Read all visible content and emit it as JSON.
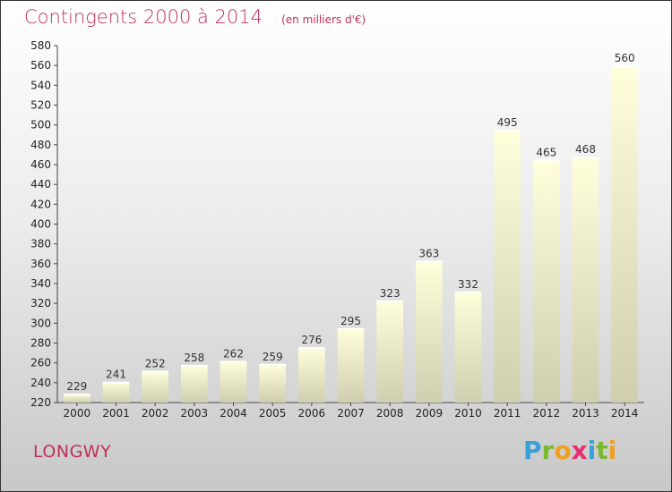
{
  "header": {
    "title": "Contingents 2000 à 2014",
    "subtitle": "(en milliers d'€)"
  },
  "footer": {
    "place": "LONGWY",
    "logo": "Proxiti"
  },
  "colors": {
    "title": "#c0305a",
    "bar_top": "#ffffdc",
    "bar_bottom": "#cfcfb0",
    "axis": "#444444"
  },
  "logo_letters": [
    {
      "char": "P",
      "color": "#3aa0d8"
    },
    {
      "char": "r",
      "color": "#7ab830"
    },
    {
      "char": "o",
      "color": "#f0a020"
    },
    {
      "char": "x",
      "color": "#e83070"
    },
    {
      "char": "i",
      "color": "#3aa0d8"
    },
    {
      "char": "t",
      "color": "#7ab830"
    },
    {
      "char": "i",
      "color": "#f0a020"
    }
  ],
  "chart_data": {
    "type": "bar",
    "categories": [
      "2000",
      "2001",
      "2002",
      "2003",
      "2004",
      "2005",
      "2006",
      "2007",
      "2008",
      "2009",
      "2010",
      "2011",
      "2012",
      "2013",
      "2014"
    ],
    "values": [
      229,
      241,
      252,
      258,
      262,
      259,
      276,
      295,
      323,
      363,
      332,
      495,
      465,
      468,
      560
    ],
    "ylim": [
      220,
      580
    ],
    "yticks": [
      220,
      240,
      260,
      280,
      300,
      320,
      340,
      360,
      380,
      400,
      420,
      440,
      460,
      480,
      500,
      520,
      540,
      560,
      580
    ],
    "grid": false,
    "data_labels": true
  }
}
